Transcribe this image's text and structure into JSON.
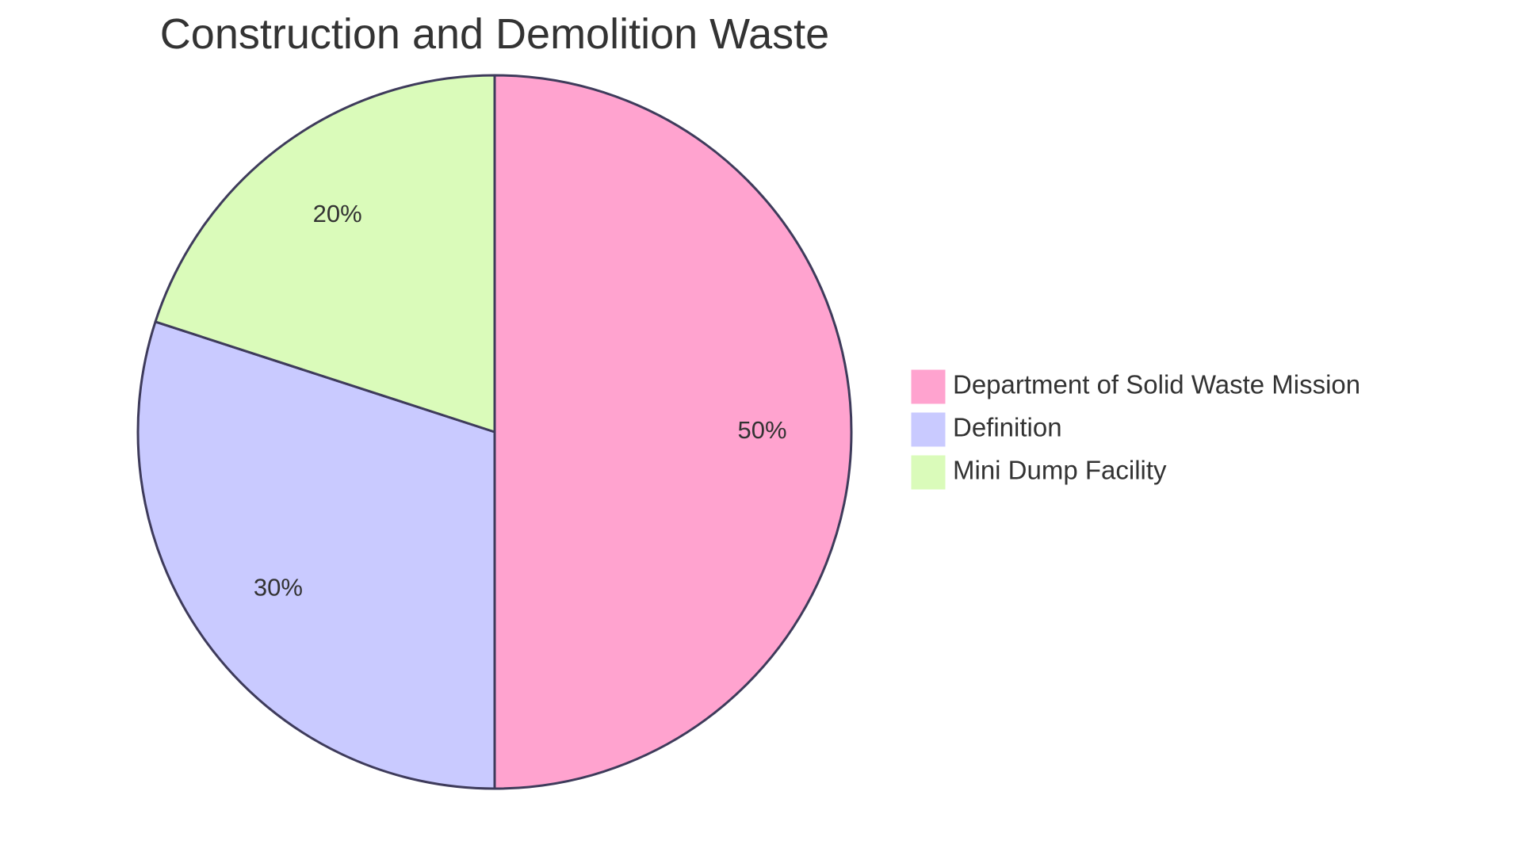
{
  "chart_data": {
    "type": "pie",
    "title": "Construction and Demolition Waste",
    "slices": [
      {
        "name": "Department of Solid Waste Mission",
        "value": 50,
        "label": "50%",
        "color": "#FFA3CF"
      },
      {
        "name": "Definition",
        "value": 30,
        "label": "30%",
        "color": "#C9CAFF"
      },
      {
        "name": "Mini Dump Facility",
        "value": 20,
        "label": "20%",
        "color": "#DAFBBA"
      }
    ],
    "stroke_color": "#3E3B5B",
    "legend_position": "right"
  }
}
